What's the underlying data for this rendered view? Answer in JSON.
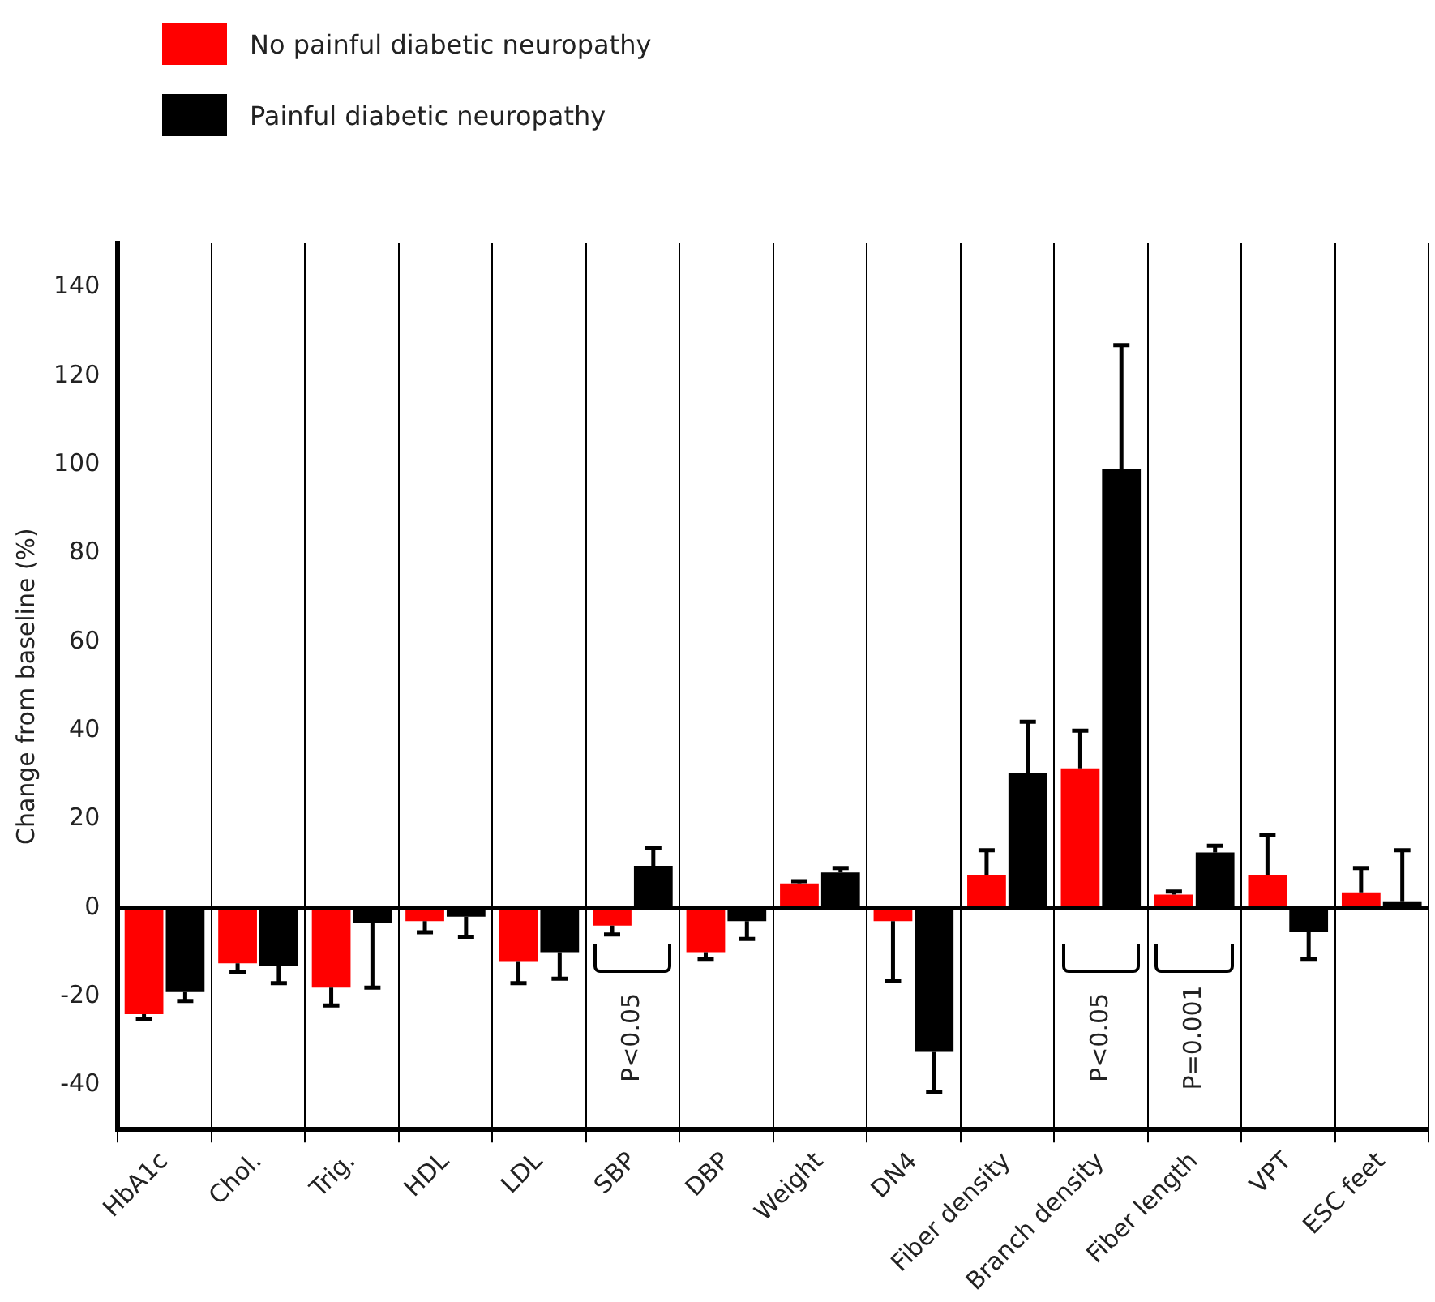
{
  "chart_data": {
    "type": "bar",
    "ylabel": "Change from baseline (%)",
    "categories": [
      "HbA1c",
      "Chol.",
      "Trig.",
      "HDL",
      "LDL",
      "SBP",
      "DBP",
      "Weight",
      "DN4",
      "Fiber density",
      "Branch density",
      "Fiber length",
      "VPT",
      "ESC feet"
    ],
    "series": [
      {
        "name": "No painful diabetic neuropathy",
        "color": "#ff0000",
        "values": [
          -24,
          -12.5,
          -18,
          -3,
          -12,
          -4,
          -10,
          5.5,
          -3,
          7.5,
          31.5,
          3,
          7.5,
          3.5
        ],
        "errors": [
          [
            -25,
            -24
          ],
          [
            -14.5,
            -12.5
          ],
          [
            -22,
            -18
          ],
          [
            -5.5,
            -3
          ],
          [
            -17,
            -12
          ],
          [
            -6,
            -4
          ],
          [
            -11.5,
            -10
          ],
          [
            5.5,
            6
          ],
          [
            -16.5,
            -3
          ],
          [
            7.5,
            13
          ],
          [
            31.5,
            40
          ],
          [
            3,
            3.7
          ],
          [
            7.5,
            16.5
          ],
          [
            3.5,
            9
          ]
        ]
      },
      {
        "name": "Painful diabetic neuropathy",
        "color": "#000000",
        "values": [
          -19,
          -13,
          -3.5,
          -2,
          -10,
          9.5,
          -3,
          8,
          -32.5,
          30.5,
          99,
          12.5,
          -5.5,
          1.5
        ],
        "errors": [
          [
            -21,
            -19
          ],
          [
            -17,
            -13
          ],
          [
            -18,
            -3.5
          ],
          [
            -6.5,
            -2
          ],
          [
            -16,
            -10
          ],
          [
            9.5,
            13.5
          ],
          [
            -7,
            -3
          ],
          [
            8,
            9
          ],
          [
            -41.5,
            -32.5
          ],
          [
            30.5,
            42
          ],
          [
            99,
            127
          ],
          [
            12.5,
            14
          ],
          [
            -11.5,
            -5.5
          ],
          [
            1.5,
            13
          ]
        ]
      }
    ],
    "ylim": [
      -50,
      150
    ],
    "yticks": [
      -40,
      -20,
      0,
      20,
      40,
      60,
      80,
      100,
      120,
      140
    ],
    "grid": "x",
    "legend": "top left",
    "annotations": [
      "P<0.05",
      "P<0.05",
      "P=0.001"
    ]
  }
}
